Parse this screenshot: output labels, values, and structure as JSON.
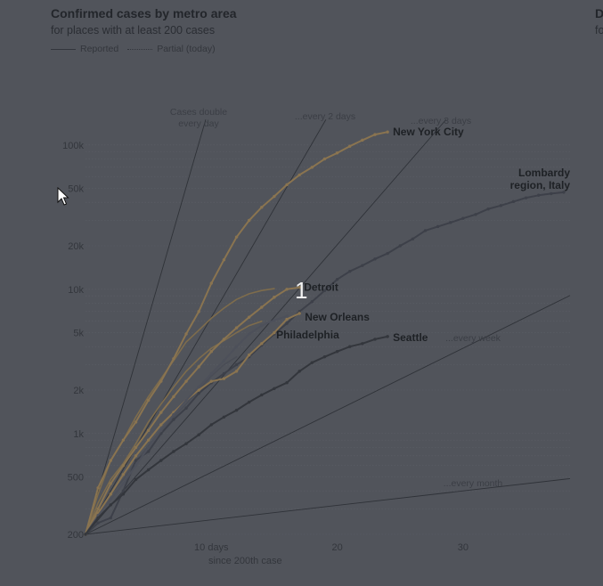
{
  "header": {
    "title": "Confirmed cases by metro area",
    "subtitle": "for places with at least 200 cases",
    "legend_reported": "Reported",
    "legend_partial": "Partial (today)",
    "next_panel_title": "D",
    "next_panel_subtitle": "fo"
  },
  "overlay": {
    "number": "1"
  },
  "cursor": {
    "icon": "arrow-cursor-icon"
  },
  "chart_data": {
    "type": "line",
    "title": "Confirmed cases by metro area",
    "subtitle": "for places with at least 200 cases",
    "xlabel": "since 200th case",
    "x_tick_labels": [
      "10 days",
      "20",
      "30"
    ],
    "x_ticks": [
      10,
      20,
      30
    ],
    "xlim": [
      0,
      38.5
    ],
    "ylim": [
      200,
      200000
    ],
    "yscale": "log",
    "y_ticks": [
      200,
      500,
      1000,
      2000,
      5000,
      10000,
      20000,
      50000,
      100000
    ],
    "y_tick_labels": [
      "200",
      "500",
      "1k",
      "2k",
      "5k",
      "10k",
      "20k",
      "50k",
      "100k"
    ],
    "grid": true,
    "legend": [
      {
        "label": "Reported",
        "style": "solid"
      },
      {
        "label": "Partial (today)",
        "style": "dotted"
      }
    ],
    "reference_lines": [
      {
        "label": "Cases double\nevery day",
        "doubling_days": 1
      },
      {
        "label": "...every 2 days",
        "doubling_days": 2
      },
      {
        "label": "...every 3 days",
        "doubling_days": 3
      },
      {
        "label": "...every week",
        "doubling_days": 7
      },
      {
        "label": "...every month",
        "doubling_days": 30
      }
    ],
    "series": [
      {
        "name": "New York City",
        "color": "#8a7450",
        "highlight": true,
        "x": [
          0,
          1,
          2,
          3,
          4,
          5,
          6,
          7,
          8,
          9,
          10,
          11,
          12,
          13,
          14,
          15,
          16,
          17,
          18,
          19,
          20,
          21,
          22,
          23,
          24
        ],
        "y": [
          200,
          420,
          650,
          900,
          1200,
          1700,
          2300,
          3300,
          4900,
          7000,
          11000,
          16000,
          23000,
          30000,
          37000,
          44000,
          53000,
          62000,
          70000,
          80000,
          88000,
          98000,
          108000,
          118000,
          123000
        ]
      },
      {
        "name": "Lombardy\nregion, Italy",
        "color": "#3d4049",
        "highlight": true,
        "x": [
          0,
          1,
          2,
          3,
          4,
          5,
          6,
          7,
          8,
          9,
          10,
          11,
          12,
          13,
          14,
          15,
          16,
          17,
          18,
          19,
          20,
          21,
          22,
          23,
          24,
          25,
          26,
          27,
          28,
          29,
          30,
          31,
          32,
          33,
          34,
          35,
          36,
          37,
          38
        ],
        "y": [
          200,
          240,
          260,
          400,
          650,
          750,
          1000,
          1250,
          1500,
          1900,
          2250,
          2600,
          3000,
          3400,
          4100,
          4900,
          5800,
          7000,
          8200,
          9800,
          11700,
          13300,
          14600,
          16200,
          17700,
          20000,
          22300,
          25500,
          27200,
          29000,
          31000,
          33000,
          36000,
          38000,
          40500,
          43000,
          44800,
          46000,
          47000
        ]
      },
      {
        "name": "Detroit",
        "color": "#8a7450",
        "highlight": true,
        "x": [
          0,
          1,
          2,
          3,
          4,
          5,
          6,
          7,
          8,
          9,
          10,
          11,
          12,
          13,
          14,
          15,
          16,
          17
        ],
        "y": [
          200,
          300,
          450,
          600,
          800,
          1050,
          1400,
          1800,
          2300,
          2900,
          3700,
          4500,
          5400,
          6400,
          7500,
          8800,
          10000,
          10300
        ]
      },
      {
        "name": "New Orleans",
        "color": "#8a7450",
        "highlight": true,
        "x": [
          0,
          1,
          2,
          3,
          4,
          5,
          6,
          7,
          8,
          9,
          10,
          11,
          12,
          13,
          14,
          15,
          16,
          17
        ],
        "y": [
          200,
          280,
          380,
          520,
          700,
          900,
          1150,
          1400,
          1700,
          2000,
          2300,
          2400,
          2700,
          3500,
          4200,
          5000,
          6200,
          6800
        ]
      },
      {
        "name": "Philadelphia",
        "color": "#4d505a",
        "highlight": true,
        "x": [
          0,
          1,
          2,
          3,
          4,
          5,
          6,
          7,
          8,
          9,
          10,
          11,
          12,
          13,
          14,
          15,
          16
        ],
        "y": [
          200,
          270,
          350,
          450,
          600,
          800,
          1050,
          1350,
          1700,
          2100,
          2600,
          3200,
          4000,
          4900,
          5600,
          6100,
          6500
        ]
      },
      {
        "name": "Seattle",
        "color": "#33363c",
        "highlight": true,
        "x": [
          0,
          1,
          2,
          3,
          4,
          5,
          6,
          7,
          8,
          9,
          10,
          11,
          12,
          13,
          14,
          15,
          16,
          17,
          18,
          19,
          20,
          21,
          22,
          23,
          24
        ],
        "y": [
          200,
          260,
          320,
          380,
          480,
          560,
          650,
          750,
          850,
          980,
          1150,
          1300,
          1450,
          1650,
          1850,
          2050,
          2250,
          2700,
          3100,
          3400,
          3700,
          4000,
          4200,
          4500,
          4700
        ]
      },
      {
        "name": "",
        "color": "#7e6c4c",
        "highlight": false,
        "x": [
          0,
          1,
          2,
          3,
          4,
          5,
          6,
          7,
          8,
          9,
          10,
          11,
          12,
          13,
          14,
          15
        ],
        "y": [
          200,
          380,
          650,
          900,
          1300,
          1800,
          2400,
          3200,
          4300,
          5200,
          6300,
          7400,
          8500,
          9300,
          9800,
          10100
        ]
      },
      {
        "name": "",
        "color": "#7e6c4c",
        "highlight": false,
        "x": [
          0,
          1,
          2,
          3,
          4,
          5,
          6,
          7,
          8,
          9,
          10,
          11,
          12,
          13,
          14
        ],
        "y": [
          200,
          330,
          480,
          620,
          850,
          1200,
          1600,
          2100,
          2700,
          3300,
          3900,
          4400,
          5000,
          5600,
          6000
        ]
      },
      {
        "name": "",
        "color": "#4a4d56",
        "highlight": false,
        "x": [
          0,
          1,
          2,
          3,
          4,
          5,
          6,
          7,
          8,
          9,
          10,
          11,
          12
        ],
        "y": [
          200,
          280,
          380,
          480,
          640,
          820,
          1050,
          1300,
          1600,
          2000,
          2500,
          3000,
          3400
        ]
      }
    ]
  }
}
